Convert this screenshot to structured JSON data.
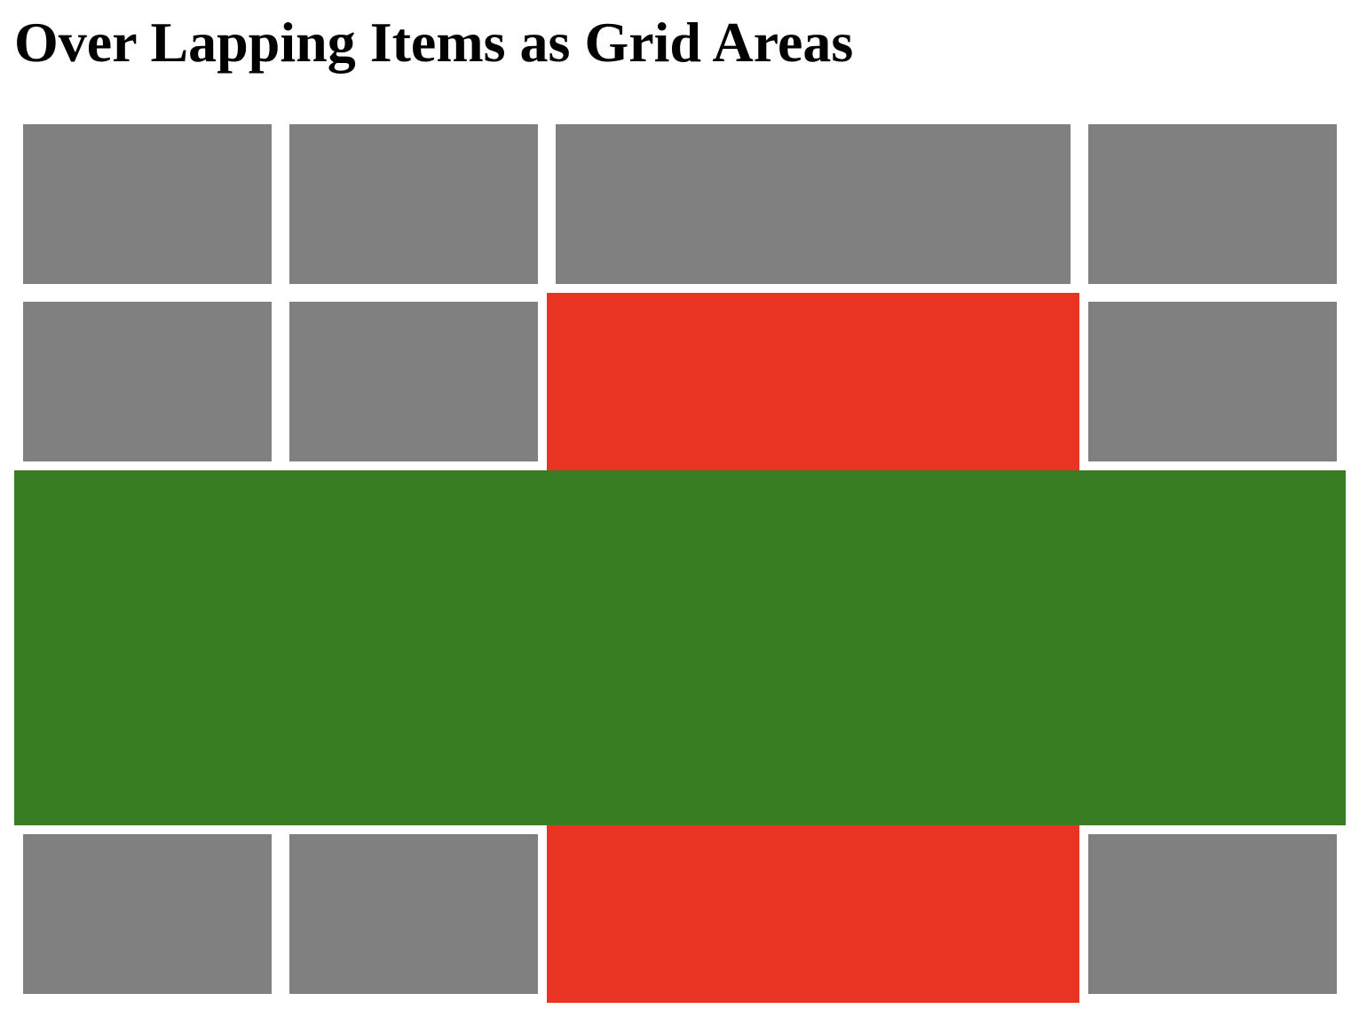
{
  "page": {
    "title": "Over Lapping Items as Grid Areas"
  },
  "colors": {
    "cell": "#808080",
    "red_area": "#e93323",
    "green_area": "#387d22",
    "background": "#ffffff"
  },
  "grid": {
    "columns": 4,
    "rows": 5,
    "cells": [
      {
        "col": 1,
        "row": 1,
        "span_cols": 1
      },
      {
        "col": 2,
        "row": 1,
        "span_cols": 1
      },
      {
        "col": 3,
        "row": 1,
        "span_cols": 1
      },
      {
        "col": 4,
        "row": 1,
        "span_cols": 1
      },
      {
        "col": 1,
        "row": 2,
        "span_cols": 1
      },
      {
        "col": 2,
        "row": 2,
        "span_cols": 1
      },
      {
        "col": 4,
        "row": 2,
        "span_cols": 1
      },
      {
        "col": 1,
        "row": 5,
        "span_cols": 1
      },
      {
        "col": 2,
        "row": 5,
        "span_cols": 1
      },
      {
        "col": 4,
        "row": 5,
        "span_cols": 1
      }
    ]
  }
}
